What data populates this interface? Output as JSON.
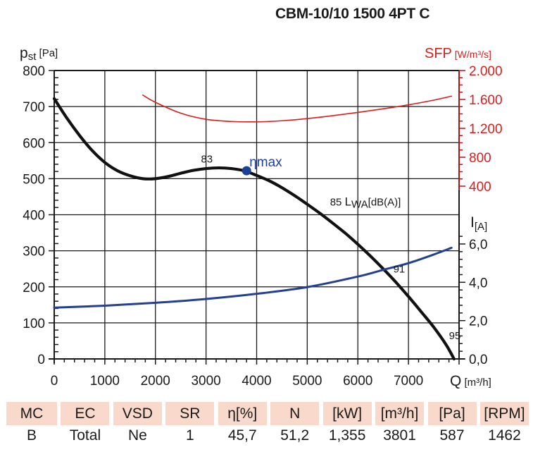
{
  "header": {
    "title": "CBM-10/10 1500 4PT C"
  },
  "chart_data": {
    "type": "line",
    "title": "CBM-10/10 1500 4PT C",
    "xlabel": "Q",
    "xunit": "[m³/h]",
    "xlim": [
      0,
      8000
    ],
    "xticks": [
      0,
      1000,
      2000,
      3000,
      4000,
      5000,
      6000,
      7000
    ],
    "xtick_labels": [
      "0",
      "1000",
      "2000",
      "3000",
      "4000",
      "5000",
      "6000",
      "7000"
    ],
    "grid": true,
    "axes": {
      "pressure": {
        "label_main": "p",
        "label_sub": "st",
        "unit": "[Pa]",
        "side": "left",
        "lim": [
          0,
          800
        ],
        "ticks": [
          0,
          100,
          200,
          300,
          400,
          500,
          600,
          700,
          800
        ],
        "tick_labels": [
          "0",
          "100",
          "200",
          "300",
          "400",
          "500",
          "600",
          "700",
          "800"
        ],
        "color": "#1a1a1a"
      },
      "sfp": {
        "label_main": "SFP",
        "unit": "[W/m³/s]",
        "side": "right-top",
        "lim": [
          400,
          2000
        ],
        "ticks": [
          400,
          800,
          1200,
          1600,
          2000
        ],
        "tick_labels": [
          "400",
          "800",
          "1.200",
          "1.600",
          "2.000"
        ],
        "color": "#d42020"
      },
      "current": {
        "label_main": "I",
        "label_sub": "[A]",
        "side": "right-bottom",
        "lim": [
          0,
          6
        ],
        "ticks": [
          0,
          2,
          4,
          6
        ],
        "tick_labels": [
          "0,0",
          "2,0",
          "4,0",
          "6,0"
        ],
        "color": "#1a1a1a"
      }
    },
    "series": [
      {
        "name": "Static pressure p_st",
        "axis": "pressure",
        "color": "#111111",
        "x": [
          0,
          250,
          500,
          750,
          1000,
          1250,
          1500,
          1750,
          2000,
          2250,
          2500,
          2750,
          3000,
          3250,
          3500,
          3750,
          4000,
          4250,
          4500,
          4750,
          5000,
          5250,
          5500,
          5750,
          6000,
          6250,
          6500,
          6750,
          7000,
          7250,
          7500,
          7750,
          7900
        ],
        "y": [
          722,
          668,
          620,
          578,
          545,
          522,
          508,
          500,
          500,
          506,
          515,
          523,
          528,
          530,
          528,
          522,
          509,
          494,
          475,
          453,
          429,
          404,
          377,
          349,
          318,
          285,
          250,
          213,
          173,
          131,
          88,
          38,
          0
        ]
      },
      {
        "name": "SFP",
        "axis": "sfp",
        "color": "#d42020",
        "x": [
          1750,
          2000,
          2500,
          3000,
          3500,
          4000,
          4500,
          5000,
          5500,
          6000,
          6500,
          7000,
          7500,
          7850
        ],
        "y": [
          1660,
          1560,
          1410,
          1325,
          1295,
          1290,
          1305,
          1335,
          1375,
          1420,
          1470,
          1525,
          1590,
          1645
        ]
      },
      {
        "name": "Current I",
        "axis": "current",
        "color": "#25408f",
        "x": [
          0,
          1000,
          2000,
          3000,
          4000,
          5000,
          6000,
          6500,
          7000,
          7500,
          7850
        ],
        "y": [
          2.68,
          2.78,
          2.93,
          3.13,
          3.4,
          3.75,
          4.3,
          4.65,
          5.0,
          5.45,
          5.8
        ]
      }
    ],
    "annotations": [
      {
        "text": "83",
        "x": 2900,
        "y": 545,
        "axis": "pressure"
      },
      {
        "text": "85",
        "x": 5450,
        "y": 425,
        "axis": "pressure",
        "suffix_main": "L",
        "suffix_sub": "WA",
        "suffix_unit": "[dB(A)]"
      },
      {
        "text": "91",
        "x": 6700,
        "y": 240,
        "axis": "pressure"
      },
      {
        "text": "95",
        "x": 7800,
        "y": 55,
        "axis": "pressure"
      }
    ],
    "eta_max": {
      "label": "ηmax",
      "x": 3801,
      "y": 522,
      "axis": "pressure",
      "color": "#1f3f97"
    }
  },
  "table": {
    "headers": [
      "MC",
      "EC",
      "VSD",
      "SR",
      "η[%]",
      "N",
      "[kW]",
      "[m³/h]",
      "[Pa]",
      "[RPM]"
    ],
    "values": [
      "B",
      "Total",
      "Ne",
      "1",
      "45,7",
      "51,2",
      "1,355",
      "3801",
      "587",
      "1462"
    ]
  }
}
